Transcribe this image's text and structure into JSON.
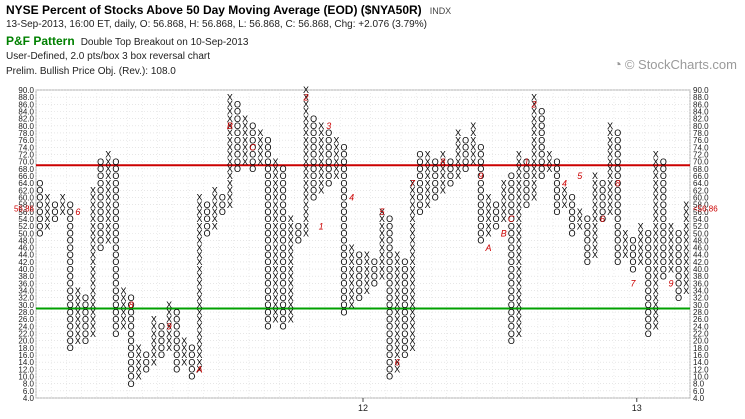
{
  "header": {
    "title": "NYSE Percent of Stocks Above 50 Day Moving Average (EOD) ($NYA50R)",
    "symbol_tag": "INDX",
    "quote": "13-Sep-2013, 16:00 ET, daily, O: 56.868, H: 56.868, L: 56.868, C: 56.868, Chg: +2.076 (3.79%)",
    "pattern_label": "P&F Pattern",
    "pattern_text": "Double Top Breakout on 10-Sep-2013",
    "settings": "User-Defined, 2.0 pts/box 3 box reversal chart",
    "price_objective": "Prelim. Bullish Price Obj. (Rev.): 108.0"
  },
  "brand": {
    "name": "© StockCharts.com",
    "icon": "stockcharts-logo-icon"
  },
  "colors": {
    "resistance": "#cc0000",
    "support": "#00a000",
    "box": "#000000",
    "month_marker": "#cc0000",
    "last_price": "#cc0000"
  },
  "chart_data": {
    "type": "point-and-figure",
    "box_size": 2,
    "reversal": 3,
    "ylim": [
      4,
      90
    ],
    "y_ticks": [
      "4.0",
      "6.0",
      "8.0",
      "10.0",
      "12.0",
      "14.0",
      "16.0",
      "18.0",
      "20.0",
      "22.0",
      "24.0",
      "26.0",
      "28.0",
      "30.0",
      "32.0",
      "34.0",
      "36.0",
      "38.0",
      "40.0",
      "42.0",
      "44.0",
      "46.0",
      "48.0",
      "50.0",
      "52.0",
      "54.0",
      "56.0",
      "58.0",
      "60.0",
      "62.0",
      "64.0",
      "66.0",
      "68.0",
      "70.0",
      "72.0",
      "74.0",
      "76.0",
      "78.0",
      "80.0",
      "82.0",
      "84.0",
      "86.0",
      "88.0",
      "90.0"
    ],
    "x_labels": [
      {
        "label": "12",
        "column": 43
      },
      {
        "label": "13",
        "column": 79
      }
    ],
    "resistance_level": 69,
    "support_level": 29,
    "last_price": 56.86,
    "last_price_label": "56.86",
    "columns": [
      {
        "type": "O",
        "low": 50,
        "high": 64
      },
      {
        "type": "X",
        "low": 52,
        "high": 60
      },
      {
        "type": "O",
        "low": 54,
        "high": 58
      },
      {
        "type": "X",
        "low": 56,
        "high": 60
      },
      {
        "type": "O",
        "low": 18,
        "high": 58
      },
      {
        "type": "X",
        "low": 20,
        "high": 34
      },
      {
        "type": "O",
        "low": 20,
        "high": 32
      },
      {
        "type": "X",
        "low": 22,
        "high": 62
      },
      {
        "type": "O",
        "low": 46,
        "high": 70
      },
      {
        "type": "X",
        "low": 48,
        "high": 72
      },
      {
        "type": "O",
        "low": 22,
        "high": 70
      },
      {
        "type": "X",
        "low": 24,
        "high": 34
      },
      {
        "type": "O",
        "low": 8,
        "high": 32
      },
      {
        "type": "X",
        "low": 10,
        "high": 18
      },
      {
        "type": "O",
        "low": 12,
        "high": 16
      },
      {
        "type": "X",
        "low": 14,
        "high": 26
      },
      {
        "type": "O",
        "low": 16,
        "high": 24
      },
      {
        "type": "X",
        "low": 18,
        "high": 30
      },
      {
        "type": "O",
        "low": 12,
        "high": 28
      },
      {
        "type": "X",
        "low": 14,
        "high": 20
      },
      {
        "type": "O",
        "low": 10,
        "high": 18
      },
      {
        "type": "X",
        "low": 12,
        "high": 60
      },
      {
        "type": "O",
        "low": 50,
        "high": 58
      },
      {
        "type": "X",
        "low": 52,
        "high": 62
      },
      {
        "type": "O",
        "low": 56,
        "high": 60
      },
      {
        "type": "X",
        "low": 58,
        "high": 88
      },
      {
        "type": "O",
        "low": 68,
        "high": 86
      },
      {
        "type": "X",
        "low": 70,
        "high": 82
      },
      {
        "type": "O",
        "low": 68,
        "high": 80
      },
      {
        "type": "X",
        "low": 70,
        "high": 78
      },
      {
        "type": "O",
        "low": 24,
        "high": 76
      },
      {
        "type": "X",
        "low": 26,
        "high": 70
      },
      {
        "type": "O",
        "low": 24,
        "high": 68
      },
      {
        "type": "X",
        "low": 26,
        "high": 54
      },
      {
        "type": "O",
        "low": 48,
        "high": 52
      },
      {
        "type": "X",
        "low": 50,
        "high": 90
      },
      {
        "type": "O",
        "low": 60,
        "high": 82
      },
      {
        "type": "X",
        "low": 62,
        "high": 80
      },
      {
        "type": "O",
        "low": 64,
        "high": 78
      },
      {
        "type": "X",
        "low": 66,
        "high": 76
      },
      {
        "type": "O",
        "low": 28,
        "high": 74
      },
      {
        "type": "X",
        "low": 30,
        "high": 46
      },
      {
        "type": "O",
        "low": 32,
        "high": 44
      },
      {
        "type": "X",
        "low": 34,
        "high": 44
      },
      {
        "type": "O",
        "low": 36,
        "high": 42
      },
      {
        "type": "X",
        "low": 38,
        "high": 56
      },
      {
        "type": "O",
        "low": 10,
        "high": 54
      },
      {
        "type": "X",
        "low": 12,
        "high": 44
      },
      {
        "type": "O",
        "low": 16,
        "high": 42
      },
      {
        "type": "X",
        "low": 18,
        "high": 64
      },
      {
        "type": "O",
        "low": 56,
        "high": 72
      },
      {
        "type": "X",
        "low": 58,
        "high": 72
      },
      {
        "type": "O",
        "low": 60,
        "high": 70
      },
      {
        "type": "X",
        "low": 62,
        "high": 72
      },
      {
        "type": "O",
        "low": 64,
        "high": 70
      },
      {
        "type": "X",
        "low": 66,
        "high": 78
      },
      {
        "type": "O",
        "low": 68,
        "high": 76
      },
      {
        "type": "X",
        "low": 70,
        "high": 80
      },
      {
        "type": "O",
        "low": 48,
        "high": 74
      },
      {
        "type": "X",
        "low": 50,
        "high": 60
      },
      {
        "type": "O",
        "low": 52,
        "high": 58
      },
      {
        "type": "X",
        "low": 54,
        "high": 64
      },
      {
        "type": "O",
        "low": 20,
        "high": 66
      },
      {
        "type": "X",
        "low": 22,
        "high": 72
      },
      {
        "type": "O",
        "low": 58,
        "high": 70
      },
      {
        "type": "X",
        "low": 60,
        "high": 88
      },
      {
        "type": "O",
        "low": 66,
        "high": 84
      },
      {
        "type": "X",
        "low": 68,
        "high": 72
      },
      {
        "type": "O",
        "low": 56,
        "high": 70
      },
      {
        "type": "X",
        "low": 58,
        "high": 62
      },
      {
        "type": "O",
        "low": 50,
        "high": 60
      },
      {
        "type": "X",
        "low": 52,
        "high": 56
      },
      {
        "type": "O",
        "low": 42,
        "high": 54
      },
      {
        "type": "X",
        "low": 44,
        "high": 66
      },
      {
        "type": "O",
        "low": 54,
        "high": 64
      },
      {
        "type": "X",
        "low": 56,
        "high": 80
      },
      {
        "type": "O",
        "low": 42,
        "high": 78
      },
      {
        "type": "X",
        "low": 44,
        "high": 50
      },
      {
        "type": "O",
        "low": 40,
        "high": 48
      },
      {
        "type": "X",
        "low": 42,
        "high": 52
      },
      {
        "type": "O",
        "low": 22,
        "high": 50
      },
      {
        "type": "X",
        "low": 24,
        "high": 72
      },
      {
        "type": "O",
        "low": 38,
        "high": 70
      },
      {
        "type": "X",
        "low": 40,
        "high": 52
      },
      {
        "type": "O",
        "low": 32,
        "high": 50
      },
      {
        "type": "X",
        "low": 34,
        "high": 58
      }
    ],
    "month_markers": [
      {
        "label": "6",
        "column": 5,
        "value": 56
      },
      {
        "label": "8",
        "column": 12,
        "value": 30
      },
      {
        "label": "9",
        "column": 17,
        "value": 24
      },
      {
        "label": "A",
        "column": 21,
        "value": 12
      },
      {
        "label": "B",
        "column": 25,
        "value": 80
      },
      {
        "label": "C",
        "column": 28,
        "value": 74
      },
      {
        "label": "2",
        "column": 35,
        "value": 88
      },
      {
        "label": "1",
        "column": 37,
        "value": 52
      },
      {
        "label": "3",
        "column": 38,
        "value": 80
      },
      {
        "label": "4",
        "column": 41,
        "value": 60
      },
      {
        "label": "5",
        "column": 45,
        "value": 56
      },
      {
        "label": "6",
        "column": 47,
        "value": 14
      },
      {
        "label": "7",
        "column": 49,
        "value": 64
      },
      {
        "label": "8",
        "column": 53,
        "value": 70
      },
      {
        "label": "9",
        "column": 58,
        "value": 66
      },
      {
        "label": "A",
        "column": 59,
        "value": 46
      },
      {
        "label": "B",
        "column": 61,
        "value": 50
      },
      {
        "label": "C",
        "column": 62,
        "value": 54
      },
      {
        "label": "1",
        "column": 64,
        "value": 70
      },
      {
        "label": "2",
        "column": 65,
        "value": 86
      },
      {
        "label": "4",
        "column": 69,
        "value": 64
      },
      {
        "label": "5",
        "column": 71,
        "value": 66
      },
      {
        "label": "6",
        "column": 74,
        "value": 54
      },
      {
        "label": "8",
        "column": 76,
        "value": 64
      },
      {
        "label": "7",
        "column": 78,
        "value": 36
      },
      {
        "label": "9",
        "column": 83,
        "value": 36
      }
    ]
  }
}
